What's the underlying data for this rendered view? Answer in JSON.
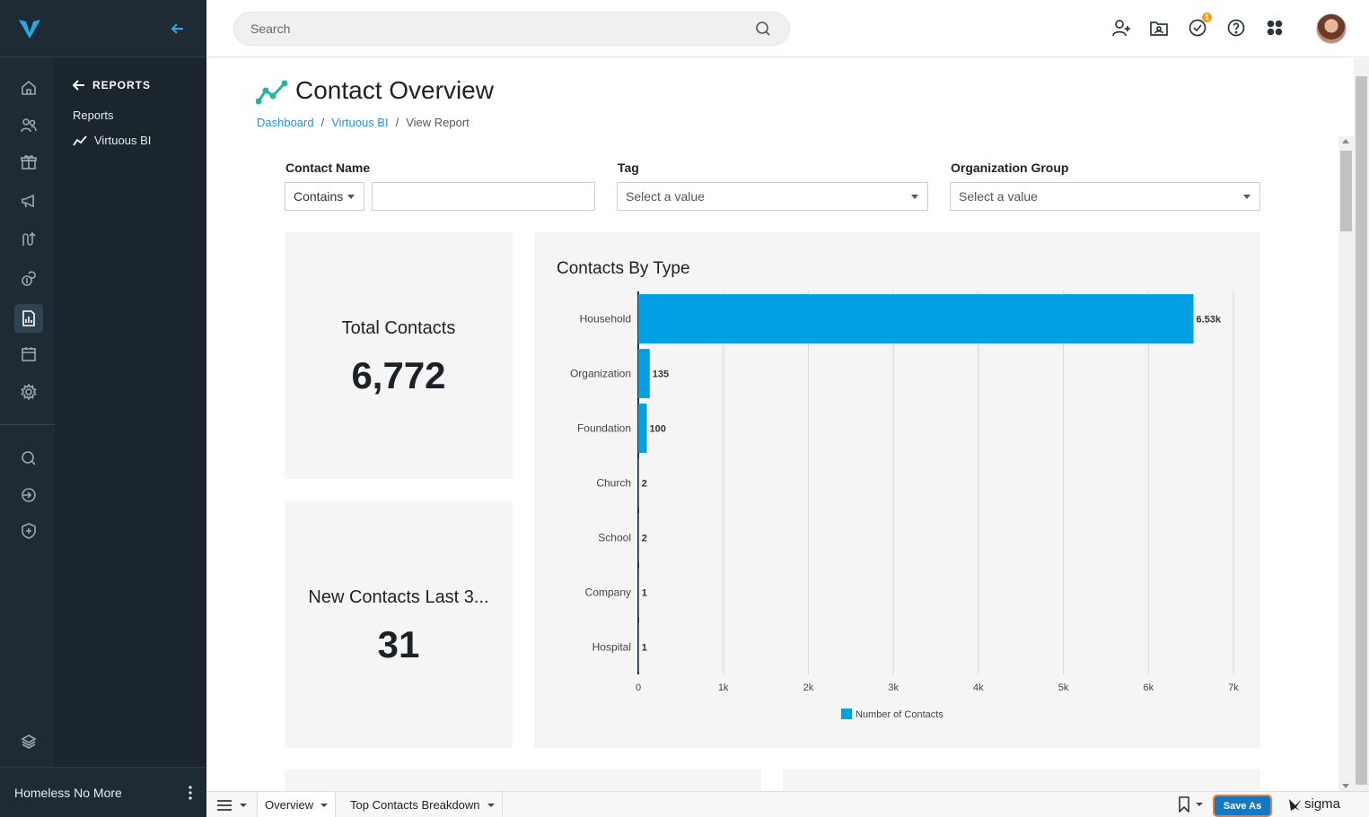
{
  "app": {
    "org_name": "Homeless No More"
  },
  "search": {
    "placeholder": "Search"
  },
  "subnav": {
    "back_label": "REPORTS",
    "items": [
      {
        "label": "Reports"
      },
      {
        "label": "Virtuous BI"
      }
    ]
  },
  "page": {
    "title": "Contact Overview",
    "breadcrumb": [
      {
        "label": "Dashboard"
      },
      {
        "label": "Virtuous BI"
      },
      {
        "label": "View Report"
      }
    ],
    "breadcrumb_sep": "/"
  },
  "filters": {
    "contact_name": {
      "label": "Contact Name",
      "operator": "Contains",
      "value": ""
    },
    "tag": {
      "label": "Tag",
      "placeholder": "Select a value"
    },
    "org_group": {
      "label": "Organization Group",
      "placeholder": "Select a value"
    }
  },
  "kpis": {
    "total": {
      "label": "Total Contacts",
      "value": "6,772"
    },
    "new": {
      "label": "New Contacts Last 3...",
      "value": "31"
    }
  },
  "notifications": {
    "count": "1"
  },
  "chart_data": {
    "type": "bar",
    "orientation": "horizontal",
    "title": "Contacts By Type",
    "categories": [
      "Household",
      "Organization",
      "Foundation",
      "Church",
      "School",
      "Company",
      "Hospital"
    ],
    "series": [
      {
        "name": "Number of Contacts",
        "values": [
          6530,
          135,
          100,
          2,
          2,
          1,
          1
        ]
      }
    ],
    "data_labels": [
      "6.53k",
      "135",
      "100",
      "2",
      "2",
      "1",
      "1"
    ],
    "xlim": [
      0,
      7000
    ],
    "xticks": [
      "0",
      "1k",
      "2k",
      "3k",
      "4k",
      "5k",
      "6k",
      "7k"
    ],
    "grid": true,
    "legend_position": "bottom",
    "bar_color": "#00a0e3"
  },
  "bottom_tabs": [
    {
      "label": "Overview"
    },
    {
      "label": "Top Contacts Breakdown"
    }
  ],
  "save_as_label": "Save As",
  "brand_label": "sigma",
  "colors": {
    "sidebar_bg": "#1f2b34",
    "accent": "#2b8fd6",
    "bar": "#00a0e3",
    "save_button": "#1678c2"
  }
}
